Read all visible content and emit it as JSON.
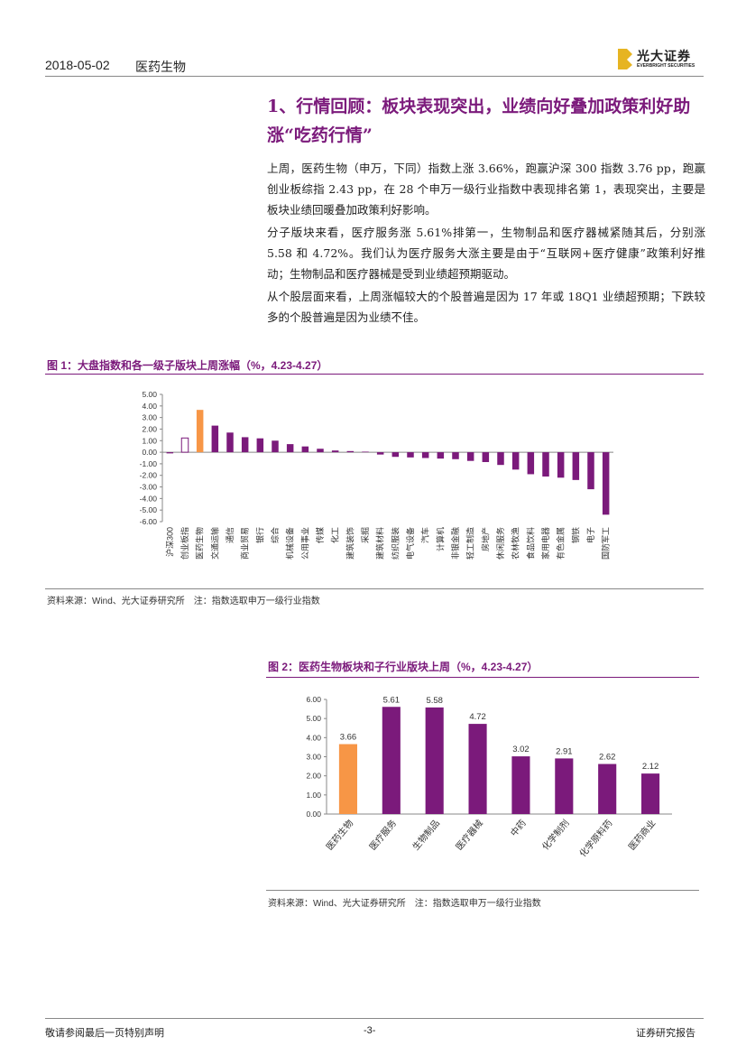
{
  "header": {
    "date": "2018-05-02",
    "section": "医药生物",
    "logo_name": "光大证券",
    "logo_en": "EVERBRIGHT SECURITIES"
  },
  "heading": "1、行情回顾：板块表现突出，业绩向好叠加政策利好助涨“吃药行情”",
  "paragraphs": [
    "上周，医药生物（申万，下同）指数上涨 3.66%，跑赢沪深 300 指数 3.76 pp，跑赢创业板综指 2.43 pp，在 28 个申万一级行业指数中表现排名第 1，表现突出，主要是板块业绩回暖叠加政策利好影响。",
    "分子版块来看，医疗服务涨 5.61%排第一，生物制品和医疗器械紧随其后，分别涨 5.58 和 4.72%。我们认为医疗服务大涨主要是由于“互联网+医疗健康”政策利好推动；生物制品和医疗器械是受到业绩超预期驱动。",
    "从个股层面来看，上周涨幅较大的个股普遍是因为 17 年或 18Q1 业绩超预期；下跌较多的个股普遍是因为业绩不佳。"
  ],
  "chart_data": [
    {
      "type": "bar",
      "title": "图 1：大盘指数和各一级子版块上周涨幅（%，4.23-4.27）",
      "source": "资料来源：Wind、光大证券研究所　注：指数选取申万一级行业指数",
      "categories": [
        "沪深300",
        "创业板指",
        "医药生物",
        "交通运输",
        "通信",
        "商业贸易",
        "银行",
        "综合",
        "机械设备",
        "公用事业",
        "传媒",
        "化工",
        "建筑装饰",
        "采掘",
        "建筑材料",
        "纺织服装",
        "电气设备",
        "汽车",
        "计算机",
        "非银金融",
        "轻工制造",
        "房地产",
        "休闲服务",
        "农林牧渔",
        "食品饮料",
        "家用电器",
        "有色金属",
        "钢铁",
        "电子",
        "国防军工"
      ],
      "values": [
        -0.1,
        1.23,
        3.66,
        2.3,
        1.7,
        1.3,
        1.2,
        1.0,
        0.7,
        0.5,
        0.3,
        0.15,
        0.1,
        0.05,
        -0.2,
        -0.4,
        -0.45,
        -0.5,
        -0.55,
        -0.6,
        -0.75,
        -0.85,
        -1.1,
        -1.5,
        -1.9,
        -2.1,
        -2.2,
        -2.4,
        -3.2,
        -5.4
      ],
      "colors": [
        "#7b1a7b",
        "#ffffff",
        "#f79646",
        "#7b1a7b",
        "#7b1a7b",
        "#7b1a7b",
        "#7b1a7b",
        "#7b1a7b",
        "#7b1a7b",
        "#7b1a7b",
        "#7b1a7b",
        "#7b1a7b",
        "#7b1a7b",
        "#7b1a7b",
        "#7b1a7b",
        "#7b1a7b",
        "#7b1a7b",
        "#7b1a7b",
        "#7b1a7b",
        "#7b1a7b",
        "#7b1a7b",
        "#7b1a7b",
        "#7b1a7b",
        "#7b1a7b",
        "#7b1a7b",
        "#7b1a7b",
        "#7b1a7b",
        "#7b1a7b",
        "#7b1a7b",
        "#7b1a7b"
      ],
      "edge_color": "#7b1a7b",
      "ylim": [
        -6,
        5
      ],
      "yticks": [
        {
          "value": 5,
          "label": "5.00"
        },
        {
          "value": 4,
          "label": "4.00"
        },
        {
          "value": 3,
          "label": "3.00"
        },
        {
          "value": 2,
          "label": "2.00"
        },
        {
          "value": 1,
          "label": "1.00"
        },
        {
          "value": 0,
          "label": "0.00"
        },
        {
          "value": -1,
          "label": "-1.00"
        },
        {
          "value": -2,
          "label": "-2.00"
        },
        {
          "value": -3,
          "label": "-3.00"
        },
        {
          "value": -4,
          "label": "-4.00"
        },
        {
          "value": -5,
          "label": "-5.00"
        },
        {
          "value": -6,
          "label": "-6.00"
        }
      ]
    },
    {
      "type": "bar",
      "title": "图 2：医药生物板块和子行业版块上周（%，4.23-4.27）",
      "source": "资料来源：Wind、光大证券研究所　注：指数选取申万一级行业指数",
      "categories": [
        "医药生物",
        "医疗服务",
        "生物制品",
        "医疗器械",
        "中药",
        "化学制剂",
        "化学原料药",
        "医药商业"
      ],
      "values": [
        3.66,
        5.61,
        5.58,
        4.72,
        3.02,
        2.91,
        2.62,
        2.12
      ],
      "colors": [
        "#f79646",
        "#7b1a7b",
        "#7b1a7b",
        "#7b1a7b",
        "#7b1a7b",
        "#7b1a7b",
        "#7b1a7b",
        "#7b1a7b"
      ],
      "ylim": [
        0,
        6
      ],
      "yticks": [
        {
          "value": 0,
          "label": "0.00"
        },
        {
          "value": 1,
          "label": "1.00"
        },
        {
          "value": 2,
          "label": "2.00"
        },
        {
          "value": 3,
          "label": "3.00"
        },
        {
          "value": 4,
          "label": "4.00"
        },
        {
          "value": 5,
          "label": "5.00"
        },
        {
          "value": 6,
          "label": "6.00"
        }
      ]
    }
  ]
}
